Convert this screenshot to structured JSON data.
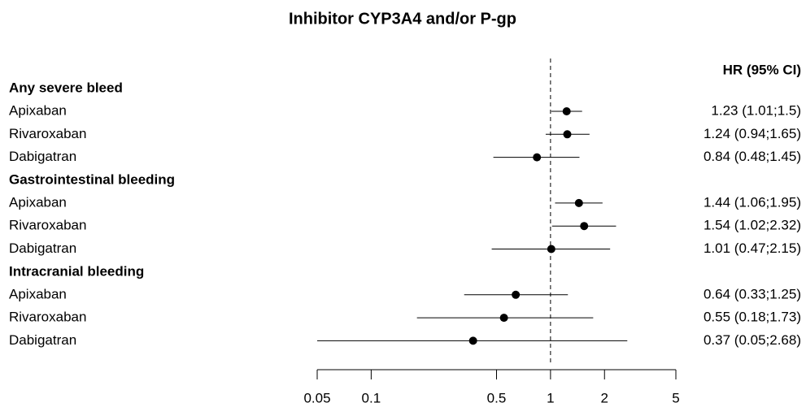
{
  "chart_data": {
    "type": "forest",
    "title": "Inhibitor CYP3A4 and/or P-gp",
    "column_header": "HR (95% CI)",
    "log_x": true,
    "xlim": [
      0.05,
      5
    ],
    "xticks": [
      0.05,
      0.1,
      0.5,
      1,
      2,
      5
    ],
    "reference": 1,
    "color": "#000000",
    "groups": [
      {
        "name": "Any severe bleed",
        "rows": [
          {
            "label": "Apixaban",
            "hr": 1.23,
            "lower": 1.01,
            "upper": 1.5,
            "value_label": "1.23 (1.01;1.5)"
          },
          {
            "label": "Rivaroxaban",
            "hr": 1.24,
            "lower": 0.94,
            "upper": 1.65,
            "value_label": "1.24 (0.94;1.65)"
          },
          {
            "label": "Dabigatran",
            "hr": 0.84,
            "lower": 0.48,
            "upper": 1.45,
            "value_label": "0.84 (0.48;1.45)"
          }
        ]
      },
      {
        "name": "Gastrointestinal bleeding",
        "rows": [
          {
            "label": "Apixaban",
            "hr": 1.44,
            "lower": 1.06,
            "upper": 1.95,
            "value_label": "1.44 (1.06;1.95)"
          },
          {
            "label": "Rivaroxaban",
            "hr": 1.54,
            "lower": 1.02,
            "upper": 2.32,
            "value_label": "1.54 (1.02;2.32)"
          },
          {
            "label": "Dabigatran",
            "hr": 1.01,
            "lower": 0.47,
            "upper": 2.15,
            "value_label": "1.01 (0.47;2.15)"
          }
        ]
      },
      {
        "name": "Intracranial bleeding",
        "rows": [
          {
            "label": "Apixaban",
            "hr": 0.64,
            "lower": 0.33,
            "upper": 1.25,
            "value_label": "0.64 (0.33;1.25)"
          },
          {
            "label": "Rivaroxaban",
            "hr": 0.55,
            "lower": 0.18,
            "upper": 1.73,
            "value_label": "0.55 (0.18;1.73)"
          },
          {
            "label": "Dabigatran",
            "hr": 0.37,
            "lower": 0.05,
            "upper": 2.68,
            "value_label": "0.37 (0.05;2.68)"
          }
        ]
      }
    ]
  }
}
